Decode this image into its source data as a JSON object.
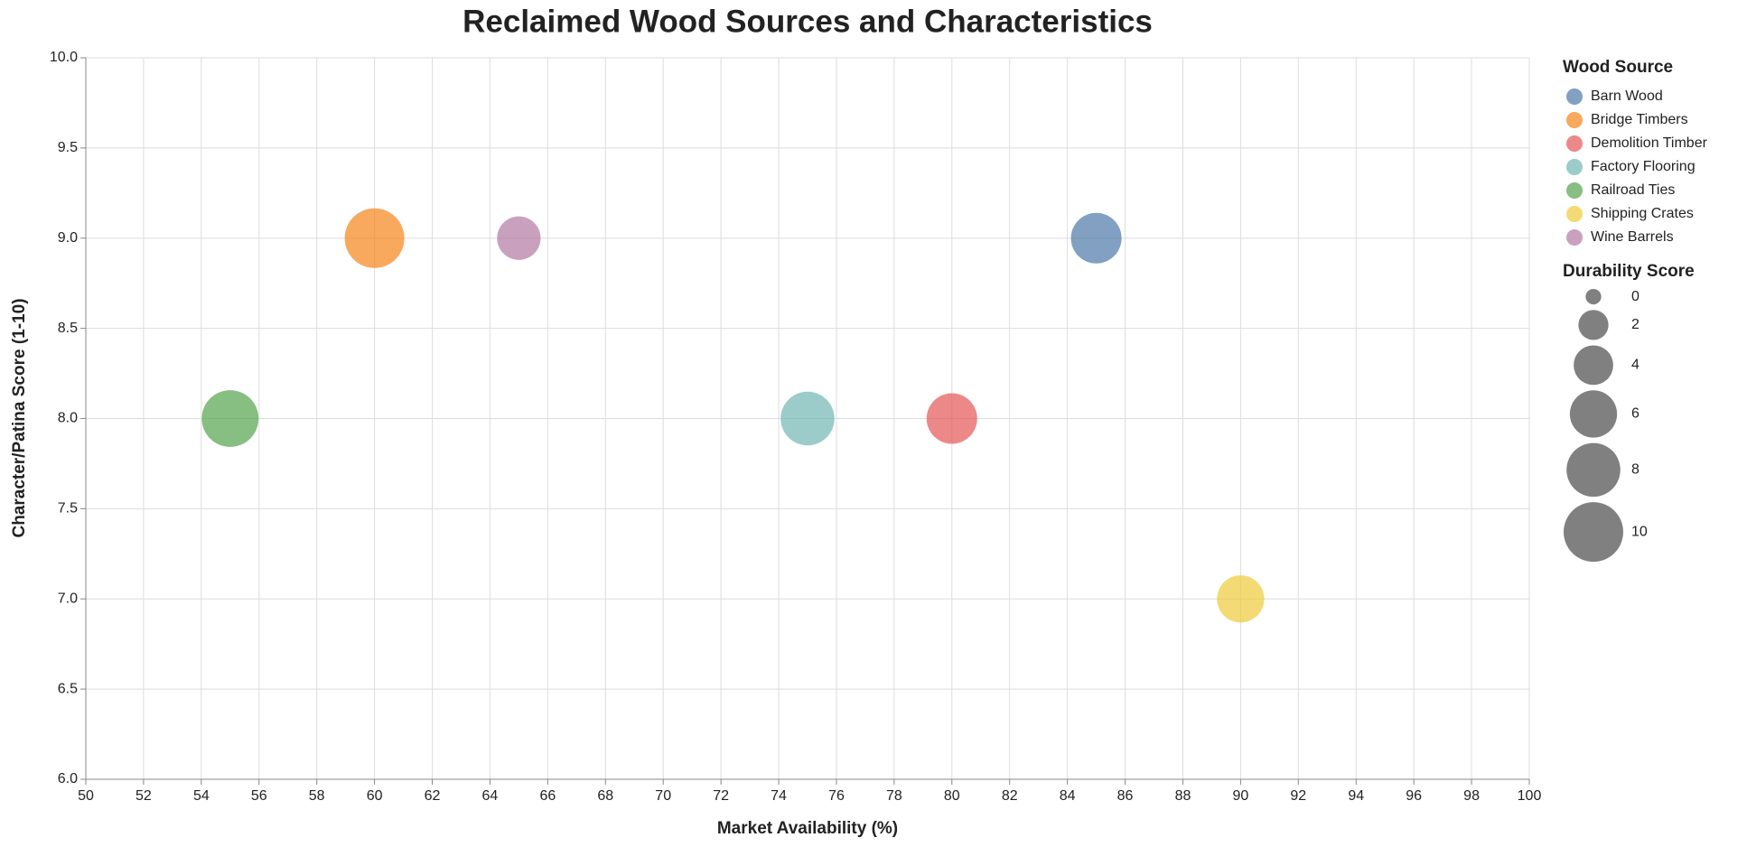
{
  "chart_data": {
    "type": "bubble",
    "title": "Reclaimed Wood Sources and Characteristics",
    "x_label": "Market Availability (%)",
    "y_label": "Character/Patina Score (1-10)",
    "xlim": [
      50,
      100
    ],
    "xticks": [
      50,
      52,
      54,
      56,
      58,
      60,
      62,
      64,
      66,
      68,
      70,
      72,
      74,
      76,
      78,
      80,
      82,
      84,
      86,
      88,
      90,
      92,
      94,
      96,
      98,
      100
    ],
    "ylim": [
      6,
      10
    ],
    "yticks": [
      {
        "value": 6,
        "label": "6.0"
      },
      6.5,
      {
        "value": 7,
        "label": "7.0"
      },
      7.5,
      {
        "value": 8,
        "label": "8.0"
      },
      8.5,
      {
        "value": 9,
        "label": "9.0"
      },
      9.5,
      {
        "value": 10,
        "label": "10.0"
      }
    ],
    "grid": true,
    "legend_title": "Wood Source",
    "size_legend": {
      "title": "Durability Score",
      "values": [
        0,
        2,
        4,
        6,
        8,
        10
      ]
    },
    "series": [
      {
        "name": "Barn Wood",
        "color": "#4c78a8",
        "x": [
          85
        ],
        "values": [
          9
        ],
        "sizes": [
          7
        ]
      },
      {
        "name": "Bridge Timbers",
        "color": "#f58518",
        "x": [
          60
        ],
        "values": [
          9
        ],
        "sizes": [
          10
        ]
      },
      {
        "name": "Demolition Timber",
        "color": "#e45756",
        "x": [
          80
        ],
        "values": [
          8
        ],
        "sizes": [
          7
        ]
      },
      {
        "name": "Factory Flooring",
        "color": "#72b7b2",
        "x": [
          75
        ],
        "values": [
          8
        ],
        "sizes": [
          8
        ]
      },
      {
        "name": "Railroad Ties",
        "color": "#54a24b",
        "x": [
          55
        ],
        "values": [
          8
        ],
        "sizes": [
          9
        ]
      },
      {
        "name": "Shipping Crates",
        "color": "#eeca3b",
        "x": [
          90
        ],
        "values": [
          7
        ],
        "sizes": [
          6
        ]
      },
      {
        "name": "Wine Barrels",
        "color": "#b279a2",
        "x": [
          65
        ],
        "values": [
          9
        ],
        "sizes": [
          5
        ]
      }
    ]
  }
}
